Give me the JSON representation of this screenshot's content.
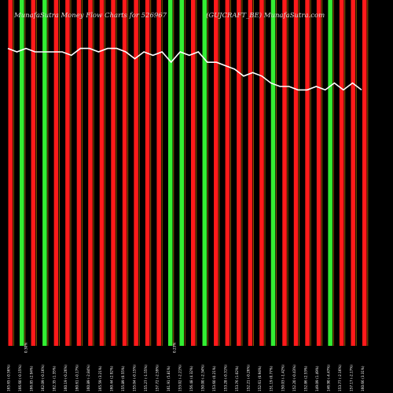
{
  "header": {
    "title": "MunafaSutra Money Flow Charts for 526967",
    "subtitle": "(GUJCRAFT_BE) MunafaSutra.com"
  },
  "chart_data": {
    "type": "bar",
    "title": "MunafaSutra Money Flow Charts for 526967",
    "subtitle": "(GUJCRAFT_BE) MunafaSutra.com",
    "colors": {
      "up": "#33ee33",
      "down": "#ff1a1a",
      "guide": "#8a5a00",
      "line": "#ffffff",
      "background": "#000000"
    },
    "ylim": [
      0,
      100
    ],
    "bars": [
      {
        "color": "down",
        "value": 100,
        "label": "165.65 (-0.56%)",
        "pct": ""
      },
      {
        "color": "up",
        "value": 100,
        "label": "166.60 (-0.15%)",
        "pct": "0.30%"
      },
      {
        "color": "down",
        "value": 100,
        "label": "166.85 (2.94%)",
        "pct": ""
      },
      {
        "color": "up",
        "value": 100,
        "label": "162.09 (-0.16%)",
        "pct": ""
      },
      {
        "color": "down",
        "value": 100,
        "label": "162.35 (1.35%)",
        "pct": ""
      },
      {
        "color": "down",
        "value": 100,
        "label": "160.19 (-0.26%)",
        "pct": ""
      },
      {
        "color": "down",
        "value": 100,
        "label": "160.61 (-0.17%)",
        "pct": ""
      },
      {
        "color": "down",
        "value": 100,
        "label": "160.89 (-2.84%)",
        "pct": ""
      },
      {
        "color": "down",
        "value": 100,
        "label": "165.59 (3.21%)",
        "pct": ""
      },
      {
        "color": "down",
        "value": 100,
        "label": "160.44 (2.92%)",
        "pct": ""
      },
      {
        "color": "down",
        "value": 100,
        "label": "155.89 (0.55%)",
        "pct": ""
      },
      {
        "color": "down",
        "value": 100,
        "label": "155.04 (-0.15%)",
        "pct": ""
      },
      {
        "color": "down",
        "value": 100,
        "label": "155.27 (-1.55%)",
        "pct": ""
      },
      {
        "color": "down",
        "value": 100,
        "label": "157.72 (-2.59%)",
        "pct": ""
      },
      {
        "color": "up",
        "value": 100,
        "label": "161.91 (5.81%)",
        "pct": "0.23%"
      },
      {
        "color": "up",
        "value": 100,
        "label": "153.02 (-2.21%)",
        "pct": ""
      },
      {
        "color": "down",
        "value": 100,
        "label": "156.48 (4.32%)",
        "pct": ""
      },
      {
        "color": "up",
        "value": 100,
        "label": "150.00 (-2.34%)",
        "pct": ""
      },
      {
        "color": "down",
        "value": 100,
        "label": "153.60 (0.21%)",
        "pct": ""
      },
      {
        "color": "down",
        "value": 100,
        "label": "153.28 (-0.31%)",
        "pct": ""
      },
      {
        "color": "down",
        "value": 100,
        "label": "153.76 (1.02%)",
        "pct": ""
      },
      {
        "color": "down",
        "value": 100,
        "label": "152.21 (-0.26%)",
        "pct": ""
      },
      {
        "color": "down",
        "value": 100,
        "label": "152.61 (0.94%)",
        "pct": ""
      },
      {
        "color": "up",
        "value": 100,
        "label": "151.19 (0.77%)",
        "pct": ""
      },
      {
        "color": "down",
        "value": 100,
        "label": "150.03 (-1.42%)",
        "pct": ""
      },
      {
        "color": "down",
        "value": 100,
        "label": "152.20 (-0.43%)",
        "pct": ""
      },
      {
        "color": "down",
        "value": 100,
        "label": "152.86 (2.53%)",
        "pct": ""
      },
      {
        "color": "down",
        "value": 100,
        "label": "149.09 (1.49%)",
        "pct": ""
      },
      {
        "color": "up",
        "value": 100,
        "label": "146.90 (-4.47%)",
        "pct": ""
      },
      {
        "color": "down",
        "value": 100,
        "label": "153.77 (-2.16%)",
        "pct": ""
      },
      {
        "color": "down",
        "value": 100,
        "label": "157.17 (-2.17%)",
        "pct": ""
      },
      {
        "color": "down",
        "value": 100,
        "label": "160.66 (3.31%)",
        "pct": ""
      }
    ],
    "line": [
      86,
      85,
      86,
      85,
      85,
      85,
      85,
      84,
      86,
      86,
      85,
      86,
      86,
      85,
      83,
      85,
      84,
      85,
      82,
      85,
      84,
      85,
      82,
      82,
      81,
      80,
      78,
      79,
      78,
      76,
      75,
      75,
      74,
      74,
      75,
      74,
      76,
      74,
      76,
      74
    ]
  }
}
